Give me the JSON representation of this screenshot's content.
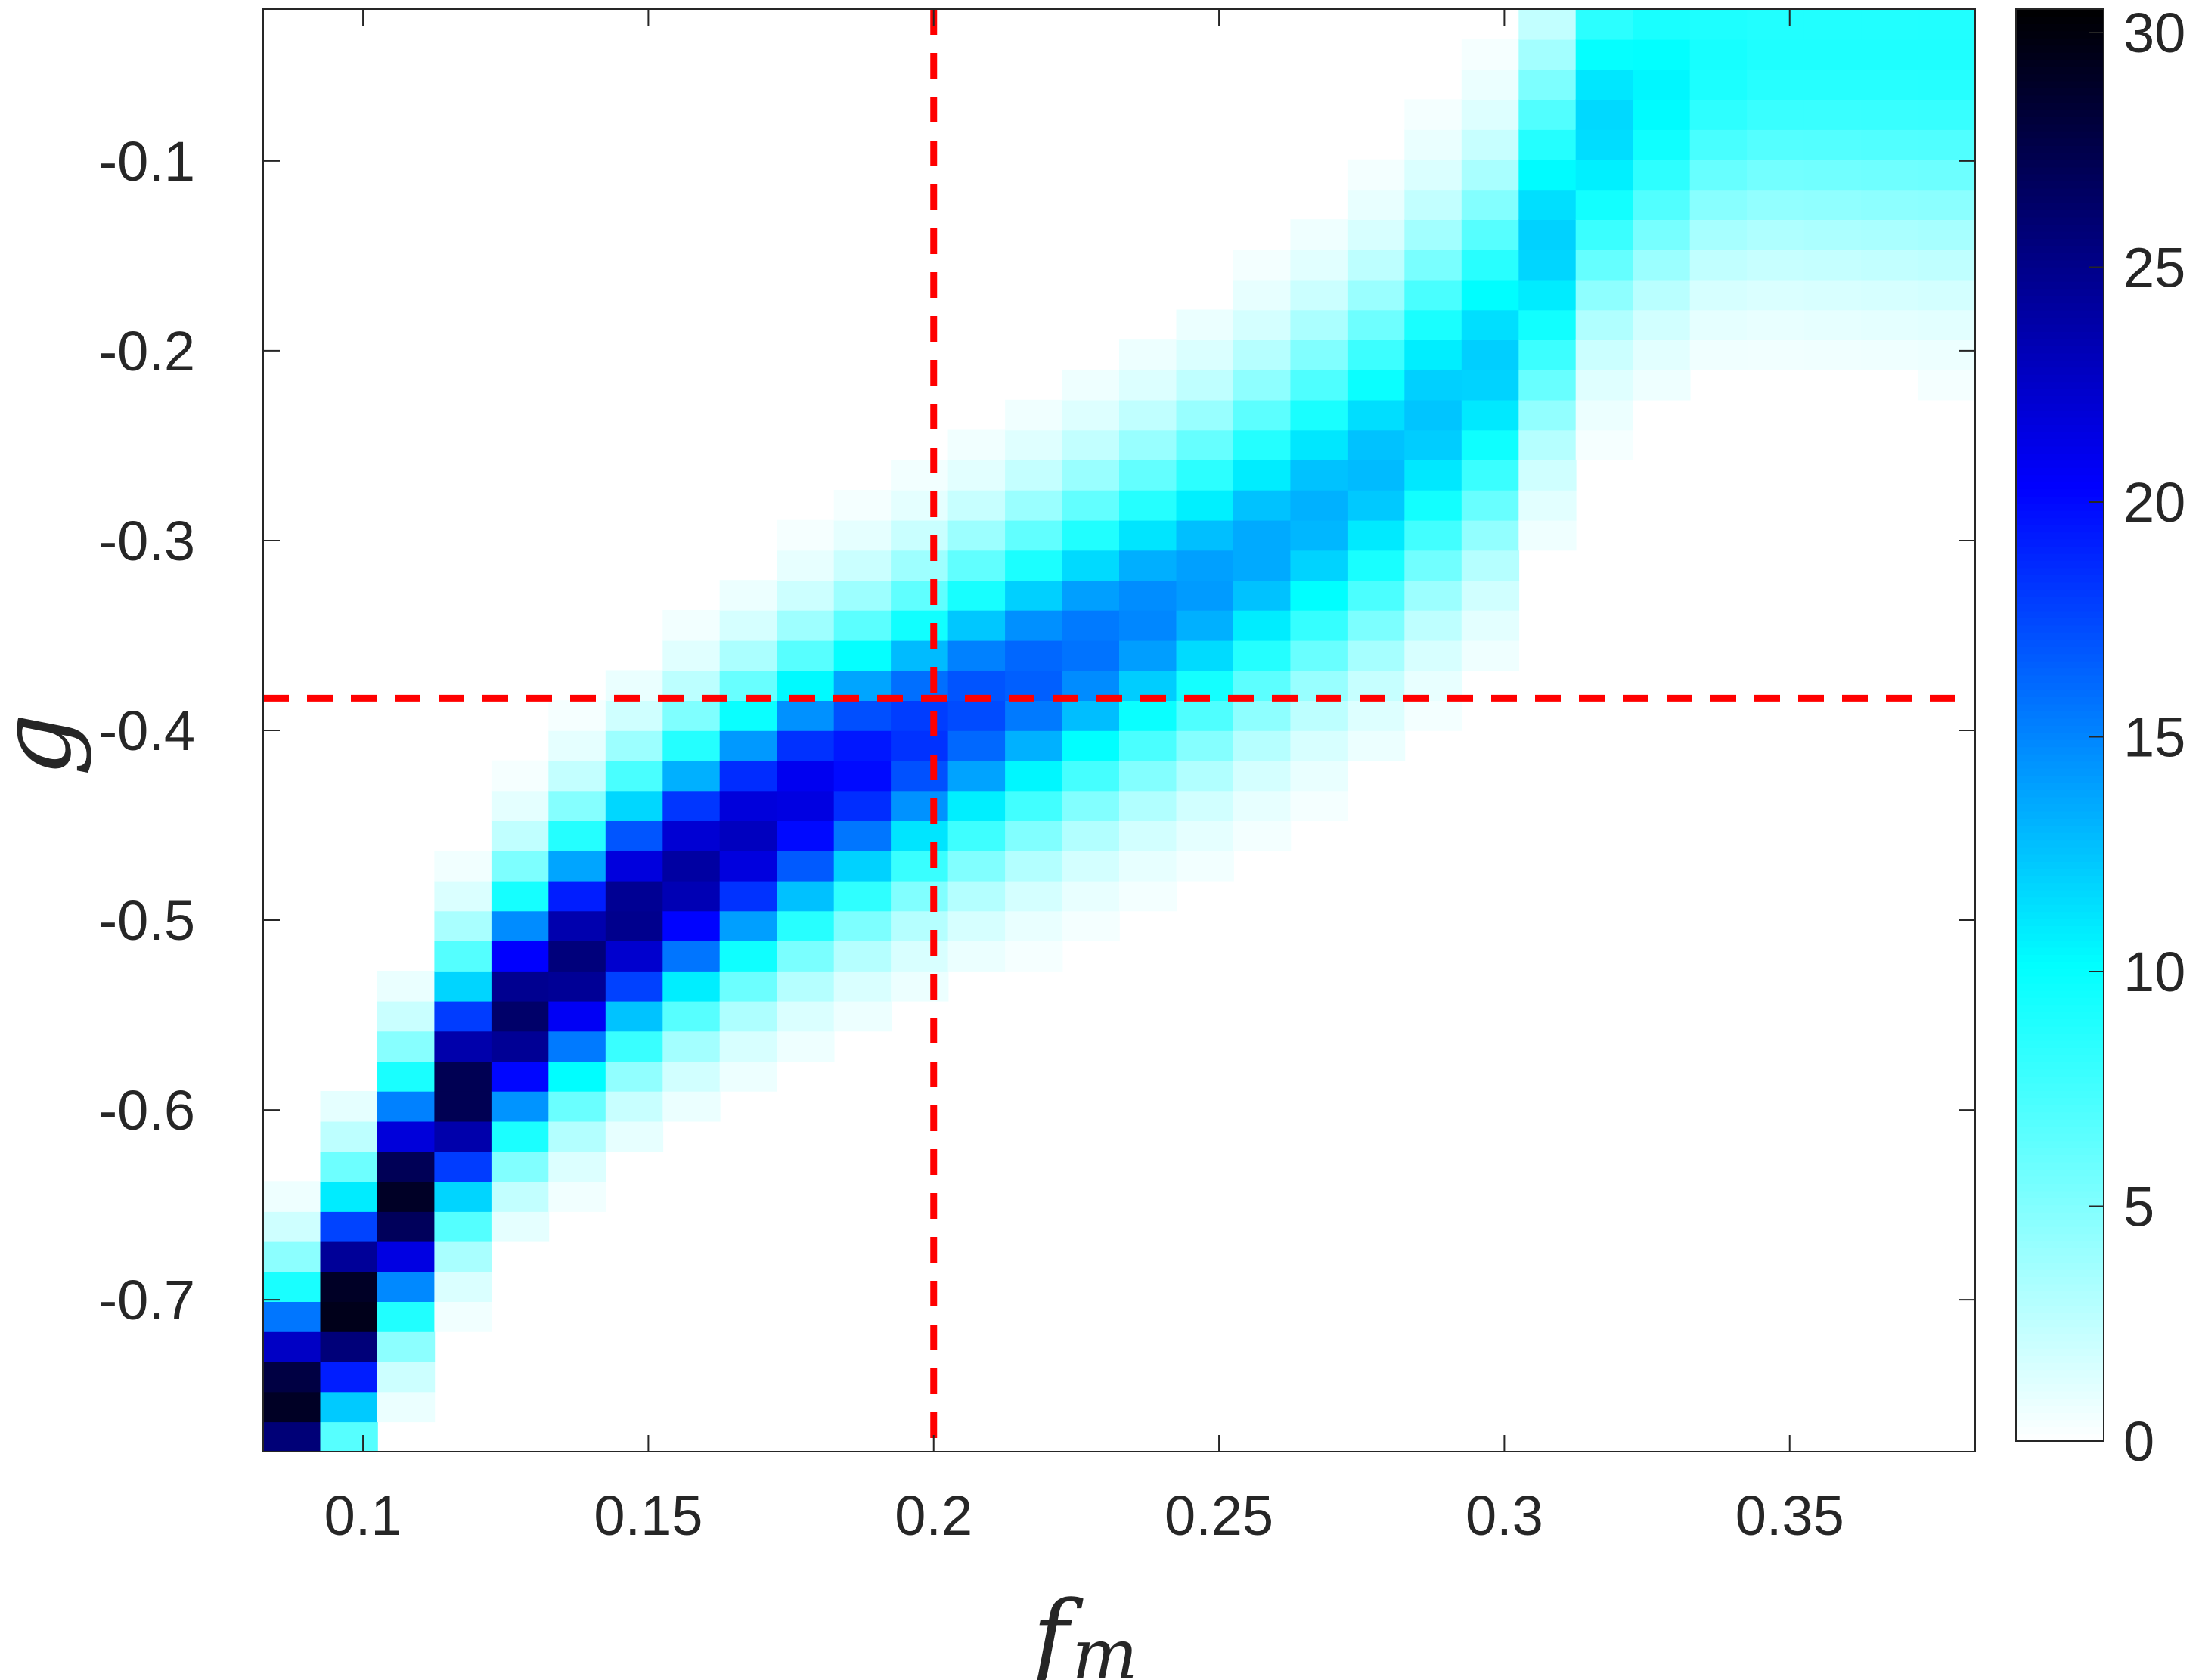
{
  "chart_data": {
    "type": "heatmap",
    "title": "",
    "xlabel": "f",
    "xlabel_subscript": "m",
    "ylabel": "g",
    "xlim": [
      0.0825,
      0.3825
    ],
    "ylim": [
      -0.78,
      -0.02
    ],
    "x_ticks": [
      0.1,
      0.15,
      0.2,
      0.25,
      0.3,
      0.35
    ],
    "x_tick_labels": [
      "0.1",
      "0.15",
      "0.2",
      "0.25",
      "0.3",
      "0.35"
    ],
    "y_ticks": [
      -0.1,
      -0.2,
      -0.3,
      -0.4,
      -0.5,
      -0.6,
      -0.7
    ],
    "y_tick_labels": [
      "-0.1",
      "-0.2",
      "-0.3",
      "-0.4",
      "-0.5",
      "-0.6",
      "-0.7"
    ],
    "grid": false,
    "colorbar": {
      "range": [
        0,
        30.5
      ],
      "ticks": [
        0,
        5,
        10,
        15,
        20,
        25,
        30
      ],
      "tick_labels": [
        "0",
        "5",
        "10",
        "15",
        "20",
        "25",
        "30"
      ],
      "colormap": [
        "#ffffff",
        "#00ffff",
        "#0000ff",
        "#000000"
      ]
    },
    "ridge": [
      {
        "f": 0.085,
        "g": -0.765,
        "value": 29
      },
      {
        "f": 0.1,
        "g": -0.69,
        "value": 30
      },
      {
        "f": 0.115,
        "g": -0.6,
        "value": 28
      },
      {
        "f": 0.13,
        "g": -0.54,
        "value": 26
      },
      {
        "f": 0.15,
        "g": -0.49,
        "value": 25
      },
      {
        "f": 0.175,
        "g": -0.44,
        "value": 22
      },
      {
        "f": 0.2,
        "g": -0.4,
        "value": 18
      },
      {
        "f": 0.225,
        "g": -0.36,
        "value": 16
      },
      {
        "f": 0.25,
        "g": -0.32,
        "value": 14
      },
      {
        "f": 0.275,
        "g": -0.27,
        "value": 13
      },
      {
        "f": 0.3,
        "g": -0.2,
        "value": 12
      },
      {
        "f": 0.315,
        "g": -0.085,
        "value": 12
      },
      {
        "f": 0.34,
        "g": -0.04,
        "value": 9
      }
    ],
    "reference_lines": [
      {
        "axis": "x",
        "value": 0.2,
        "color": "#ff0000",
        "style": "dashed"
      },
      {
        "axis": "y",
        "value": -0.383,
        "color": "#ff0000",
        "style": "dashed"
      }
    ]
  }
}
